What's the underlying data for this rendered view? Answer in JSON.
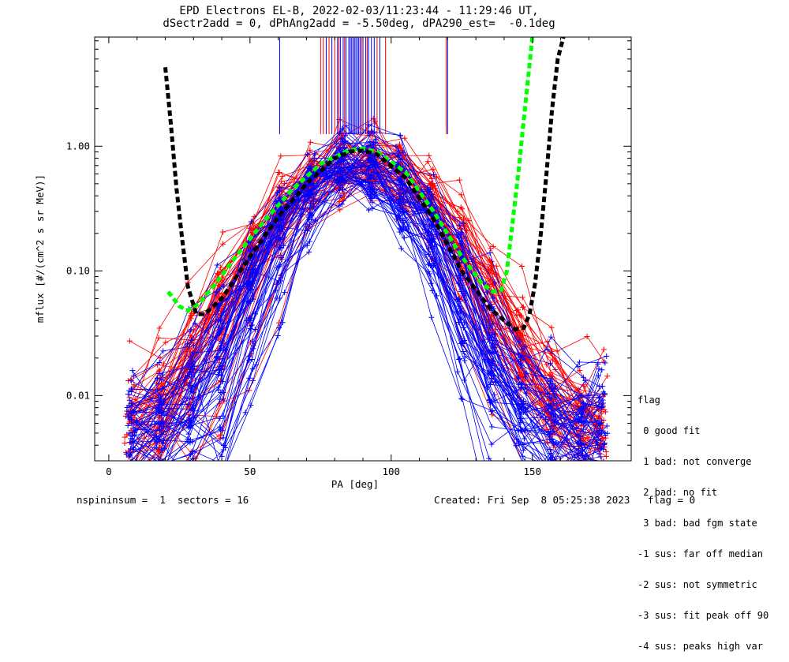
{
  "chart_data": {
    "type": "scatter",
    "title": "EPD Electrons EL-B, 2022-02-03/11:23:44 - 11:29:46 UT,",
    "subtitle": "dSectr2add = 0, dPhAng2add = -5.50deg, dPA290_est=  -0.1deg",
    "xlabel": "PA [deg]",
    "ylabel": "mflux [#/(cm^2 s sr MeV)]",
    "xlim": [
      -5,
      185
    ],
    "ylim": [
      0.003,
      7.5
    ],
    "yscale": "log",
    "xticks": [
      {
        "value": 0,
        "label": "0"
      },
      {
        "value": 50,
        "label": "50"
      },
      {
        "value": 100,
        "label": "100"
      },
      {
        "value": 150,
        "label": "150"
      }
    ],
    "yticks": [
      {
        "value": 0.01,
        "label": "0.01"
      },
      {
        "value": 0.1,
        "label": "0.10"
      },
      {
        "value": 1.0,
        "label": "1.00"
      }
    ],
    "pa_bins": [
      7.7,
      18.3,
      29.0,
      39.6,
      50.3,
      60.9,
      71.6,
      82.2,
      92.9,
      103.5,
      114.2,
      124.8,
      135.5,
      146.1,
      156.8,
      167.4,
      174.5
    ],
    "series": [
      {
        "name": "red",
        "color": "#ff0000",
        "n_traces": 55,
        "peak_pa": 89,
        "width_pa": 29
      },
      {
        "name": "blue",
        "color": "#0000ff",
        "n_traces": 60,
        "peak_pa": 88,
        "width_pa": 24
      }
    ],
    "fit_curves": [
      {
        "color": "#00ff00",
        "style": "dashed",
        "x": [
          21,
          25,
          28,
          32,
          38,
          45,
          55,
          65,
          75,
          85,
          90,
          95,
          105,
          115,
          125,
          132,
          136,
          139,
          141,
          145,
          150
        ],
        "y": [
          0.068,
          0.052,
          0.048,
          0.055,
          0.08,
          0.13,
          0.25,
          0.45,
          0.72,
          0.93,
          0.96,
          0.9,
          0.62,
          0.3,
          0.13,
          0.08,
          0.068,
          0.07,
          0.1,
          0.6,
          7.5
        ]
      },
      {
        "color": "#000000",
        "style": "dashed",
        "x": [
          20,
          22,
          24,
          26,
          28,
          31,
          34,
          40,
          50,
          60,
          70,
          80,
          86,
          90,
          95,
          105,
          115,
          125,
          135,
          140,
          144,
          147,
          149,
          151,
          153,
          155,
          157,
          159,
          161
        ],
        "y": [
          4.3,
          1.5,
          0.45,
          0.18,
          0.075,
          0.045,
          0.045,
          0.06,
          0.13,
          0.27,
          0.5,
          0.8,
          0.91,
          0.92,
          0.86,
          0.56,
          0.26,
          0.1,
          0.05,
          0.04,
          0.034,
          0.035,
          0.045,
          0.08,
          0.2,
          0.6,
          2.0,
          5.0,
          7.5
        ]
      }
    ],
    "peak_markers": [
      {
        "color": "#0000ff",
        "x": [
          60.5,
          77,
          79,
          81,
          82,
          83,
          84,
          85,
          85.5,
          86,
          86.5,
          87,
          87.5,
          88,
          88.5,
          89,
          90,
          91,
          92,
          93,
          94,
          96,
          120
        ]
      },
      {
        "color": "#ff0000",
        "x": [
          75,
          76,
          78,
          80,
          81.5,
          83.5,
          89.5,
          91.5,
          95,
          98,
          119.5
        ]
      }
    ],
    "marker_ylim": [
      1.25,
      7.5
    ]
  },
  "legend": {
    "title": "flag",
    "items": [
      " 0 good fit",
      " 1 bad: not converge",
      " 2 bad: no fit",
      " 3 bad: bad fgm state",
      "-1 sus: far off median",
      "-2 sus: not symmetric",
      "-3 sus: fit peak off 90",
      "-4 sus: peaks high var"
    ]
  },
  "footer": {
    "left": "nspininsum =  1  sectors = 16",
    "right": "Created: Fri Sep  8 05:25:38 2023   flag = 0"
  }
}
